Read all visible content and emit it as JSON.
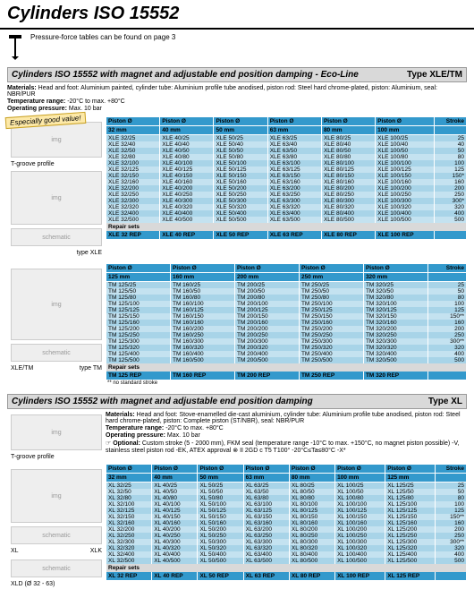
{
  "page_title": "Cylinders ISO 15552",
  "intro_note": "Pressure-force tables can be found on page 3",
  "section1": {
    "title": "Cylinders ISO 15552 with magnet and adjustable end position damping - Eco-Line",
    "type": "Type XLE/TM",
    "materials": "Head and foot: Aluminium painted, cylinder tube: Aluminium profile tube anodised, piston rod: Steel hard chrome-plated, piston: Aluminium, seal: NBR/PUR",
    "temp": "-20°C to max. +80°C",
    "press": "Max. 10 bar",
    "good_value": "Especially good value!",
    "tgroove": "T-groove profile",
    "type_lbl_xle": "type XLE",
    "type_lbl_tm": "type TM",
    "xletm": "XLE/TM",
    "hdr": [
      "Piston Ø",
      "Piston Ø",
      "Piston Ø",
      "Piston Ø",
      "Piston Ø",
      "Piston Ø",
      "Stroke"
    ],
    "sub": [
      "32 mm",
      "40 mm",
      "50 mm",
      "63 mm",
      "80 mm",
      "100 mm",
      ""
    ],
    "rows": [
      [
        "XLE 32/25",
        "XLE 40/25",
        "XLE 50/25",
        "XLE 63/25",
        "XLE 80/25",
        "XLE 100/25",
        "25"
      ],
      [
        "XLE 32/40",
        "XLE 40/40",
        "XLE 50/40",
        "XLE 63/40",
        "XLE 80/40",
        "XLE 100/40",
        "40"
      ],
      [
        "XLE 32/50",
        "XLE 40/50",
        "XLE 50/50",
        "XLE 63/50",
        "XLE 80/50",
        "XLE 100/50",
        "50"
      ],
      [
        "XLE 32/80",
        "XLE 40/80",
        "XLE 50/80",
        "XLE 63/80",
        "XLE 80/80",
        "XLE 100/80",
        "80"
      ],
      [
        "XLE 32/100",
        "XLE 40/100",
        "XLE 50/100",
        "XLE 63/100",
        "XLE 80/100",
        "XLE 100/100",
        "100"
      ],
      [
        "XLE 32/125",
        "XLE 40/125",
        "XLE 50/125",
        "XLE 63/125",
        "XLE 80/125",
        "XLE 100/125",
        "125"
      ],
      [
        "XLE 32/150",
        "XLE 40/150",
        "XLE 50/150",
        "XLE 63/150",
        "XLE 80/150",
        "XLE 100/150",
        "150*"
      ],
      [
        "XLE 32/160",
        "XLE 40/160",
        "XLE 50/160",
        "XLE 63/160",
        "XLE 80/160",
        "XLE 100/160",
        "160"
      ],
      [
        "XLE 32/200",
        "XLE 40/200",
        "XLE 50/200",
        "XLE 63/200",
        "XLE 80/200",
        "XLE 100/200",
        "200"
      ],
      [
        "XLE 32/250",
        "XLE 40/250",
        "XLE 50/250",
        "XLE 63/250",
        "XLE 80/250",
        "XLE 100/250",
        "250"
      ],
      [
        "XLE 32/300",
        "XLE 40/300",
        "XLE 50/300",
        "XLE 63/300",
        "XLE 80/300",
        "XLE 100/300",
        "300*"
      ],
      [
        "XLE 32/320",
        "XLE 40/320",
        "XLE 50/320",
        "XLE 63/320",
        "XLE 80/320",
        "XLE 100/320",
        "320"
      ],
      [
        "XLE 32/400",
        "XLE 40/400",
        "XLE 50/400",
        "XLE 63/400",
        "XLE 80/400",
        "XLE 100/400",
        "400"
      ],
      [
        "XLE 32/500",
        "XLE 40/500",
        "XLE 50/500",
        "XLE 63/500",
        "XLE 80/500",
        "XLE 100/500",
        "500"
      ]
    ],
    "repair_label": "Repair sets",
    "repair": [
      "XLE 32 REP",
      "XLE 40 REP",
      "XLE 50 REP",
      "XLE 63 REP",
      "XLE 80 REP",
      "XLE 100 REP",
      ""
    ],
    "hdr2": [
      "Piston Ø",
      "Piston Ø",
      "Piston Ø",
      "Piston Ø",
      "Piston Ø",
      "Stroke"
    ],
    "sub2": [
      "125 mm",
      "160 mm",
      "200 mm",
      "250 mm",
      "320 mm",
      ""
    ],
    "rows2": [
      [
        "TM 125/25",
        "TM 160/25",
        "TM 200/25",
        "TM 250/25",
        "TM 320/25",
        "25"
      ],
      [
        "TM 125/50",
        "TM 160/50",
        "TM 200/50",
        "TM 250/50",
        "TM 320/50",
        "50"
      ],
      [
        "TM 125/80",
        "TM 160/80",
        "TM 200/80",
        "TM 250/80",
        "TM 320/80",
        "80"
      ],
      [
        "TM 125/100",
        "TM 160/100",
        "TM 200/100",
        "TM 250/100",
        "TM 320/100",
        "100"
      ],
      [
        "TM 125/125",
        "TM 160/125",
        "TM 200/125",
        "TM 250/125",
        "TM 320/125",
        "125"
      ],
      [
        "TM 125/150",
        "TM 160/150",
        "TM 200/150",
        "TM 250/150",
        "TM 320/150",
        "150**"
      ],
      [
        "TM 125/160",
        "TM 160/160",
        "TM 200/160",
        "TM 250/160",
        "TM 320/160",
        "160"
      ],
      [
        "TM 125/200",
        "TM 160/200",
        "TM 200/200",
        "TM 250/200",
        "TM 320/200",
        "200"
      ],
      [
        "TM 125/250",
        "TM 160/250",
        "TM 200/250",
        "TM 250/250",
        "TM 320/250",
        "250"
      ],
      [
        "TM 125/300",
        "TM 160/300",
        "TM 200/300",
        "TM 250/300",
        "TM 320/300",
        "300**"
      ],
      [
        "TM 125/320",
        "TM 160/320",
        "TM 200/320",
        "TM 250/320",
        "TM 320/320",
        "320"
      ],
      [
        "TM 125/400",
        "TM 160/400",
        "TM 200/400",
        "TM 250/400",
        "TM 320/400",
        "400"
      ],
      [
        "TM 125/500",
        "TM 160/500",
        "TM 200/500",
        "TM 250/500",
        "TM 320/500",
        "500"
      ]
    ],
    "repair2": [
      "TM 125 REP",
      "TM 160 REP",
      "TM 200 REP",
      "TM 250 REP",
      "TM 320 REP",
      ""
    ],
    "footnote": "** no standard stroke"
  },
  "section2": {
    "title": "Cylinders ISO 15552 with magnet and adjustable end position damping",
    "type": "Type XL",
    "materials": "Head and foot: Stove-enamelled die-cast aluminium, cylinder tube: Aluminium profile tube anodised, piston rod: Steel hard chrome-plated, piston: Complete piston (ST/NBR), seal: NBR/PUR",
    "temp": "-20°C to max. +80°C",
    "press": "Max. 10 bar",
    "optional": "Custom stroke (5 - 2000 mm), FKM seal (temperature range -10°C to max. +150°C, no magnet piston possible) -V, stainless steel piston rod -EK, ATEX approval ⊗ II 2GD c T5 T100° -20°C≤Ta≤80°C -X*",
    "tgroove": "T-groove profile",
    "xl": "XL",
    "xlk": "XLK",
    "xld": "XLD (Ø 32 - 63)",
    "hdr": [
      "Piston Ø",
      "Piston Ø",
      "Piston Ø",
      "Piston Ø",
      "Piston Ø",
      "Piston Ø",
      "Piston Ø",
      "Stroke"
    ],
    "sub": [
      "32 mm",
      "40 mm",
      "50 mm",
      "63 mm",
      "80 mm",
      "100 mm",
      "125 mm",
      ""
    ],
    "rows": [
      [
        "XL 32/25",
        "XL 40/25",
        "XL 50/25",
        "XL 63/25",
        "XL 80/25",
        "XL 100/25",
        "XL 125/25",
        "25"
      ],
      [
        "XL 32/50",
        "XL 40/50",
        "XL 50/50",
        "XL 63/50",
        "XL 80/50",
        "XL 100/50",
        "XL 125/50",
        "50"
      ],
      [
        "XL 32/80",
        "XL 40/80",
        "XL 50/80",
        "XL 63/80",
        "XL 80/80",
        "XL 100/80",
        "XL 125/80",
        "80"
      ],
      [
        "XL 32/100",
        "XL 40/100",
        "XL 50/100",
        "XL 63/100",
        "XL 80/100",
        "XL 100/100",
        "XL 125/100",
        "100"
      ],
      [
        "XL 32/125",
        "XL 40/125",
        "XL 50/125",
        "XL 63/125",
        "XL 80/125",
        "XL 100/125",
        "XL 125/125",
        "125"
      ],
      [
        "XL 32/150",
        "XL 40/150",
        "XL 50/150",
        "XL 63/150",
        "XL 80/150",
        "XL 100/150",
        "XL 125/150",
        "150**"
      ],
      [
        "XL 32/160",
        "XL 40/160",
        "XL 50/160",
        "XL 63/160",
        "XL 80/160",
        "XL 100/160",
        "XL 125/160",
        "160"
      ],
      [
        "XL 32/200",
        "XL 40/200",
        "XL 50/200",
        "XL 63/200",
        "XL 80/200",
        "XL 100/200",
        "XL 125/200",
        "200"
      ],
      [
        "XL 32/250",
        "XL 40/250",
        "XL 50/250",
        "XL 63/250",
        "XL 80/250",
        "XL 100/250",
        "XL 125/250",
        "250"
      ],
      [
        "XL 32/300",
        "XL 40/300",
        "XL 50/300",
        "XL 63/300",
        "XL 80/300",
        "XL 100/300",
        "XL 125/300",
        "300**"
      ],
      [
        "XL 32/320",
        "XL 40/320",
        "XL 50/320",
        "XL 63/320",
        "XL 80/320",
        "XL 100/320",
        "XL 125/320",
        "320"
      ],
      [
        "XL 32/400",
        "XL 40/400",
        "XL 50/400",
        "XL 63/400",
        "XL 80/400",
        "XL 100/400",
        "XL 125/400",
        "400"
      ],
      [
        "XL 32/500",
        "XL 40/500",
        "XL 50/500",
        "XL 63/500",
        "XL 80/500",
        "XL 100/500",
        "XL 125/500",
        "500"
      ]
    ],
    "repair_label": "Repair sets",
    "repair": [
      "XL 32 REP",
      "XL 40 REP",
      "XL 50 REP",
      "XL 63 REP",
      "XL 80 REP",
      "XL 100 REP",
      "XL 125 REP",
      ""
    ]
  }
}
